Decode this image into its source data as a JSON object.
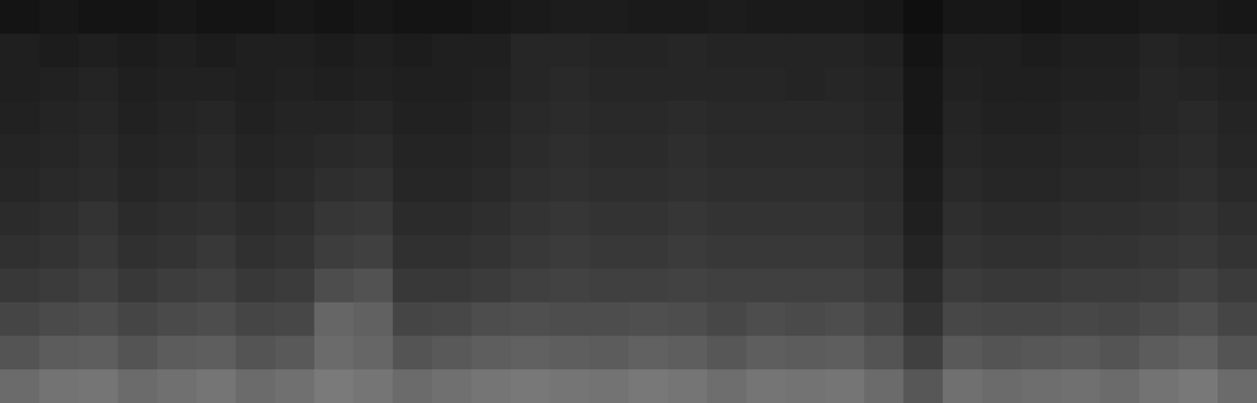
{
  "chart_data": {
    "type": "heatmap",
    "tick_labels": false,
    "grid": false,
    "color": "#ffffff",
    "xlim": [
      0,
      32
    ],
    "ylim": [
      0,
      12
    ],
    "cells": [
      [
        0.08,
        0.09,
        0.08,
        0.08,
        0.09,
        0.08,
        0.08,
        0.09,
        0.08,
        0.09,
        0.08,
        0.08,
        0.09,
        0.1,
        0.11,
        0.11,
        0.1,
        0.1,
        0.11,
        0.1,
        0.1,
        0.1,
        0.09,
        0.06,
        0.09,
        0.09,
        0.08,
        0.09,
        0.09,
        0.1,
        0.1,
        0.09
      ],
      [
        0.12,
        0.11,
        0.12,
        0.11,
        0.12,
        0.11,
        0.12,
        0.12,
        0.11,
        0.12,
        0.11,
        0.12,
        0.12,
        0.15,
        0.15,
        0.14,
        0.14,
        0.15,
        0.14,
        0.14,
        0.14,
        0.14,
        0.13,
        0.08,
        0.12,
        0.12,
        0.11,
        0.12,
        0.12,
        0.14,
        0.13,
        0.12
      ],
      [
        0.12,
        0.13,
        0.14,
        0.12,
        0.13,
        0.13,
        0.12,
        0.13,
        0.12,
        0.13,
        0.12,
        0.12,
        0.13,
        0.15,
        0.16,
        0.15,
        0.15,
        0.15,
        0.15,
        0.15,
        0.14,
        0.15,
        0.14,
        0.09,
        0.13,
        0.12,
        0.12,
        0.13,
        0.13,
        0.15,
        0.14,
        0.13
      ],
      [
        0.13,
        0.14,
        0.15,
        0.13,
        0.14,
        0.15,
        0.13,
        0.14,
        0.14,
        0.15,
        0.13,
        0.13,
        0.14,
        0.16,
        0.17,
        0.16,
        0.16,
        0.17,
        0.16,
        0.16,
        0.16,
        0.16,
        0.15,
        0.09,
        0.14,
        0.13,
        0.13,
        0.14,
        0.14,
        0.15,
        0.16,
        0.14
      ],
      [
        0.14,
        0.15,
        0.16,
        0.14,
        0.15,
        0.16,
        0.14,
        0.15,
        0.16,
        0.17,
        0.14,
        0.14,
        0.15,
        0.17,
        0.18,
        0.17,
        0.17,
        0.18,
        0.17,
        0.17,
        0.17,
        0.17,
        0.16,
        0.1,
        0.15,
        0.14,
        0.14,
        0.15,
        0.15,
        0.16,
        0.17,
        0.15
      ],
      [
        0.15,
        0.16,
        0.17,
        0.15,
        0.16,
        0.17,
        0.15,
        0.16,
        0.18,
        0.19,
        0.15,
        0.15,
        0.16,
        0.18,
        0.19,
        0.18,
        0.18,
        0.19,
        0.18,
        0.18,
        0.18,
        0.18,
        0.17,
        0.11,
        0.16,
        0.15,
        0.15,
        0.16,
        0.16,
        0.17,
        0.18,
        0.16
      ],
      [
        0.17,
        0.18,
        0.2,
        0.17,
        0.18,
        0.19,
        0.17,
        0.18,
        0.21,
        0.22,
        0.17,
        0.17,
        0.18,
        0.2,
        0.21,
        0.2,
        0.2,
        0.21,
        0.2,
        0.2,
        0.2,
        0.2,
        0.18,
        0.12,
        0.18,
        0.17,
        0.17,
        0.18,
        0.18,
        0.19,
        0.2,
        0.18
      ],
      [
        0.19,
        0.2,
        0.22,
        0.19,
        0.2,
        0.22,
        0.19,
        0.2,
        0.24,
        0.25,
        0.19,
        0.19,
        0.2,
        0.22,
        0.23,
        0.22,
        0.22,
        0.23,
        0.22,
        0.22,
        0.22,
        0.22,
        0.2,
        0.14,
        0.2,
        0.19,
        0.19,
        0.2,
        0.2,
        0.21,
        0.22,
        0.2
      ],
      [
        0.22,
        0.23,
        0.25,
        0.22,
        0.24,
        0.25,
        0.22,
        0.23,
        0.3,
        0.32,
        0.22,
        0.22,
        0.23,
        0.25,
        0.26,
        0.25,
        0.25,
        0.26,
        0.25,
        0.25,
        0.25,
        0.25,
        0.23,
        0.17,
        0.23,
        0.22,
        0.22,
        0.23,
        0.23,
        0.24,
        0.26,
        0.23
      ],
      [
        0.27,
        0.29,
        0.3,
        0.27,
        0.29,
        0.3,
        0.27,
        0.28,
        0.4,
        0.38,
        0.27,
        0.28,
        0.3,
        0.31,
        0.3,
        0.3,
        0.31,
        0.3,
        0.28,
        0.3,
        0.29,
        0.3,
        0.27,
        0.2,
        0.28,
        0.27,
        0.27,
        0.28,
        0.27,
        0.29,
        0.31,
        0.27
      ],
      [
        0.33,
        0.36,
        0.37,
        0.33,
        0.36,
        0.37,
        0.33,
        0.35,
        0.42,
        0.4,
        0.33,
        0.35,
        0.37,
        0.38,
        0.37,
        0.36,
        0.38,
        0.37,
        0.34,
        0.37,
        0.36,
        0.37,
        0.33,
        0.25,
        0.35,
        0.33,
        0.34,
        0.35,
        0.33,
        0.36,
        0.38,
        0.33
      ],
      [
        0.42,
        0.45,
        0.46,
        0.42,
        0.44,
        0.46,
        0.42,
        0.44,
        0.48,
        0.46,
        0.42,
        0.44,
        0.46,
        0.47,
        0.46,
        0.45,
        0.47,
        0.46,
        0.43,
        0.46,
        0.45,
        0.46,
        0.42,
        0.34,
        0.44,
        0.42,
        0.43,
        0.44,
        0.42,
        0.45,
        0.47,
        0.42
      ]
    ]
  }
}
